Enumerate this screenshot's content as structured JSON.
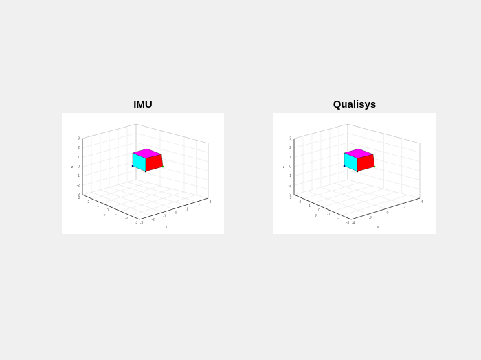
{
  "figure": {
    "background": "#f0f0f0",
    "axes_background": "#ffffff"
  },
  "chart_data": [
    {
      "type": "3d-cube-orientation",
      "title": "IMU",
      "grid": true,
      "xlabel": "x",
      "ylabel": "y",
      "zlabel": "z",
      "x_ticks": [
        "-3",
        "-2",
        "-1",
        "0",
        "1",
        "2",
        "3"
      ],
      "y_ticks": [
        "3",
        "2",
        "1",
        "0",
        "-1",
        "-2",
        "-3"
      ],
      "z_ticks": [
        "3",
        "2",
        "1",
        "0",
        "-1",
        "-2",
        "-3"
      ],
      "face_colors": {
        "top": "#ff00ff",
        "left": "#00ffff",
        "front": "#ff0000"
      }
    },
    {
      "type": "3d-cube-orientation",
      "title": "Qualisys",
      "grid": true,
      "xlabel": "x",
      "ylabel": "y",
      "zlabel": "z",
      "x_ticks": [
        "-4",
        "-2",
        "0",
        "2",
        "4"
      ],
      "y_ticks": [
        "3",
        "2",
        "1",
        "0",
        "-1",
        "-2",
        "-3"
      ],
      "z_ticks": [
        "3",
        "2",
        "1",
        "0",
        "-1",
        "-2",
        "-3"
      ],
      "face_colors": {
        "top": "#ff00ff",
        "left": "#00ffff",
        "front": "#ff0000"
      }
    }
  ]
}
